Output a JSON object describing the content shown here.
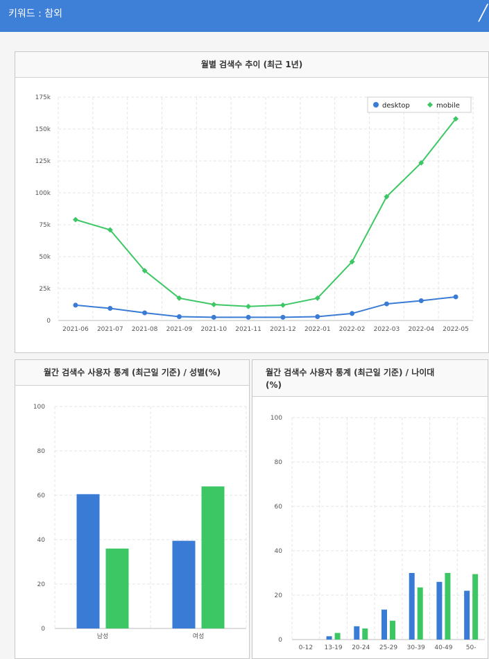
{
  "header": {
    "title": "키워드 : 참외",
    "close_icon": "close-icon"
  },
  "colors": {
    "desktop": "#3a7bd5",
    "mobile": "#3dc764",
    "header_bg": "#3e7fd7"
  },
  "chart_data": [
    {
      "type": "line",
      "title": "월별 검색수 추이 (최근 1년)",
      "categories": [
        "2021-06",
        "2021-07",
        "2021-08",
        "2021-09",
        "2021-10",
        "2021-11",
        "2021-12",
        "2022-01",
        "2022-02",
        "2022-03",
        "2022-04",
        "2022-05"
      ],
      "series": [
        {
          "name": "desktop",
          "color": "#3a7bd5",
          "values": [
            12000,
            9500,
            6000,
            3000,
            2500,
            2500,
            2500,
            3000,
            5500,
            13000,
            15500,
            18500
          ]
        },
        {
          "name": "mobile",
          "color": "#3dc764",
          "values": [
            79000,
            71000,
            39000,
            17500,
            12500,
            11000,
            12000,
            17500,
            46000,
            97000,
            123500,
            158000
          ]
        }
      ],
      "yticks": [
        "0",
        "25k",
        "50k",
        "75k",
        "100k",
        "125k",
        "150k",
        "175k"
      ],
      "ylim": [
        0,
        175000
      ],
      "grid": true,
      "legend": "top-right"
    },
    {
      "type": "bar",
      "title": "월간 검색수 사용자 통계 (최근일 기준) / 성별(%)",
      "categories": [
        "남성",
        "여성"
      ],
      "series": [
        {
          "color": "#3a7bd5",
          "values": [
            60.5,
            39.5
          ]
        },
        {
          "color": "#3dc764",
          "values": [
            36,
            64
          ]
        }
      ],
      "yticks": [
        "0",
        "20",
        "40",
        "60",
        "80",
        "100"
      ],
      "ylim": [
        0,
        100
      ],
      "grid": true
    },
    {
      "type": "bar",
      "title": "월간 검색수 사용자 통계 (최근일 기준) / 나이대 (%)",
      "title_lines": [
        "월간 검색수 사용자 통계 (최근일 기준) / 나이대",
        "(%)"
      ],
      "categories": [
        "0-12",
        "13-19",
        "20-24",
        "25-29",
        "30-39",
        "40-49",
        "50-"
      ],
      "series": [
        {
          "color": "#3a7bd5",
          "values": [
            0,
            1.5,
            6,
            13.5,
            30,
            26,
            22
          ]
        },
        {
          "color": "#3dc764",
          "values": [
            0,
            3,
            5,
            8.5,
            23.5,
            30,
            29.5
          ]
        }
      ],
      "yticks": [
        "0",
        "20",
        "40",
        "60",
        "80",
        "100"
      ],
      "ylim": [
        0,
        100
      ],
      "grid": true
    }
  ]
}
